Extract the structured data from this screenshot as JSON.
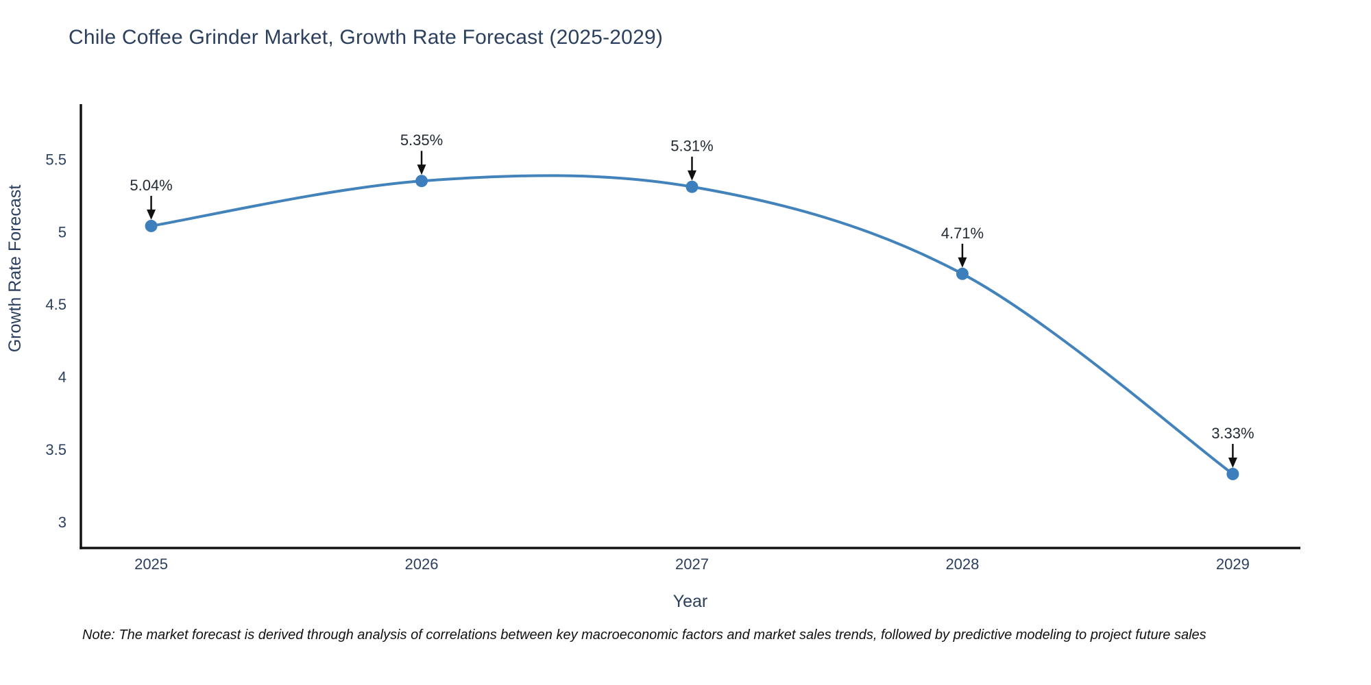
{
  "title": "Chile Coffee Grinder Market, Growth Rate Forecast (2025-2029)",
  "note": "Note: The market forecast is derived through analysis of correlations between key macroeconomic factors and market sales trends, followed by predictive modeling to project future sales",
  "chart_data": {
    "type": "line",
    "title": "Chile Coffee Grinder Market, Growth Rate Forecast (2025-2029)",
    "xlabel": "Year",
    "ylabel": "Growth Rate Forecast",
    "x": [
      2025,
      2026,
      2027,
      2028,
      2029
    ],
    "y": [
      5.04,
      5.35,
      5.31,
      4.71,
      3.33
    ],
    "point_labels": [
      "5.04%",
      "5.35%",
      "5.31%",
      "4.71%",
      "3.33%"
    ],
    "xtick_labels": [
      "2025",
      "2026",
      "2027",
      "2028",
      "2029"
    ],
    "yticks": [
      3,
      3.5,
      4,
      4.5,
      5,
      5.5
    ],
    "ytick_labels": [
      "3",
      "3.5",
      "4",
      "4.5",
      "5",
      "5.5"
    ],
    "xlim": [
      2024.74,
      2029.25
    ],
    "ylim": [
      2.82,
      5.88
    ],
    "grid": false,
    "legend": false,
    "line_shape": "spline",
    "line_color": "#4383bb",
    "marker_color": "#3d7ebd",
    "axis_color": "#111111",
    "arrow_color": "#111111",
    "text_color": "#2b3f5e",
    "annotation_text_color": "#222a35"
  }
}
